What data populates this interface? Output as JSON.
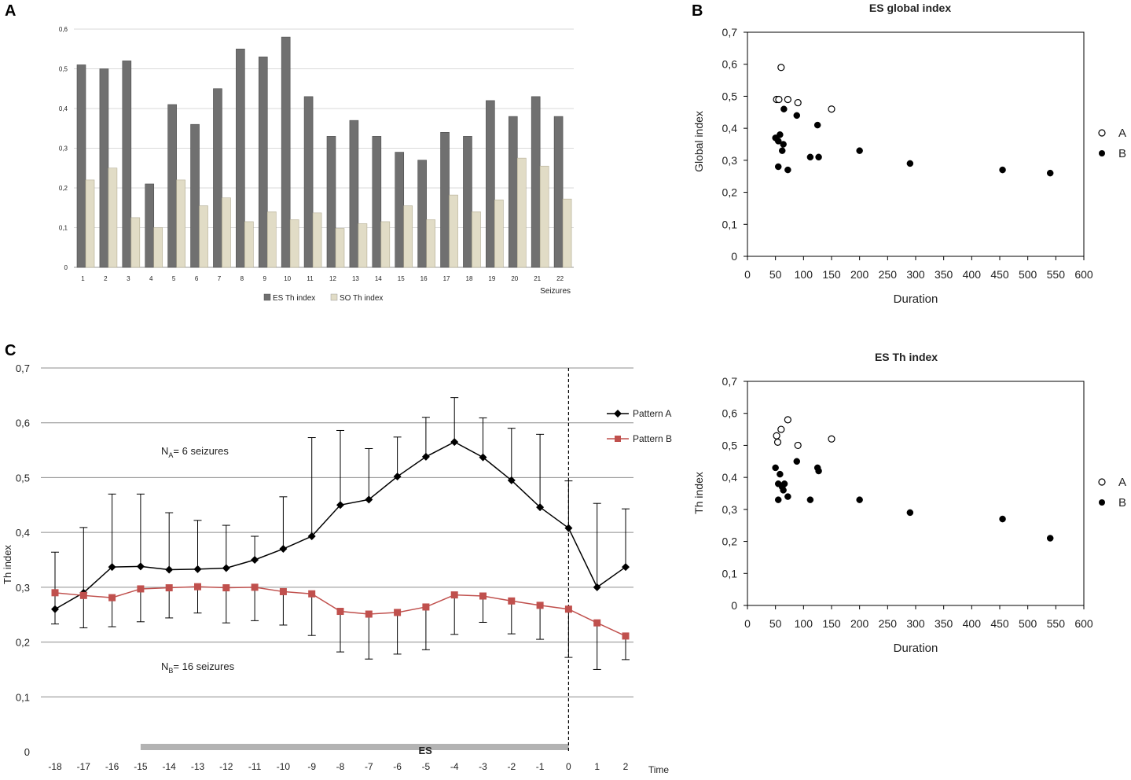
{
  "panel_labels": {
    "a": "A",
    "b": "B",
    "c": "C"
  },
  "chart_data": [
    {
      "id": "A",
      "type": "bar",
      "title": "",
      "xlabel": "Seizures",
      "ylabel": "",
      "ylim": [
        0,
        0.6
      ],
      "yticks": [
        "0",
        "0,1",
        "0,2",
        "0,3",
        "0,4",
        "0,5",
        "0,6"
      ],
      "categories": [
        "1",
        "2",
        "3",
        "4",
        "5",
        "6",
        "7",
        "8",
        "9",
        "10",
        "11",
        "12",
        "13",
        "14",
        "15",
        "16",
        "17",
        "18",
        "19",
        "20",
        "21",
        "22"
      ],
      "series": [
        {
          "name": "ES Th index",
          "color": "#707070",
          "values": [
            0.51,
            0.5,
            0.52,
            0.21,
            0.41,
            0.36,
            0.45,
            0.55,
            0.53,
            0.58,
            0.43,
            0.33,
            0.37,
            0.33,
            0.29,
            0.27,
            0.34,
            0.33,
            0.42,
            0.38,
            0.43,
            0.38
          ]
        },
        {
          "name": "SO Th index",
          "color": "#e1dcc6",
          "values": [
            0.22,
            0.25,
            0.125,
            0.1,
            0.22,
            0.155,
            0.175,
            0.115,
            0.14,
            0.12,
            0.137,
            0.098,
            0.11,
            0.115,
            0.155,
            0.12,
            0.182,
            0.14,
            0.17,
            0.275,
            0.255,
            0.172
          ]
        }
      ]
    },
    {
      "id": "B1",
      "type": "scatter",
      "title": "ES global index",
      "xlabel": "Duration",
      "ylabel": "Global index",
      "xlim": [
        0,
        600
      ],
      "ylim": [
        0,
        0.7
      ],
      "xticks": [
        "0",
        "50",
        "100",
        "150",
        "200",
        "250",
        "300",
        "350",
        "400",
        "450",
        "500",
        "550",
        "600"
      ],
      "yticks": [
        "0",
        "0,1",
        "0,2",
        "0,3",
        "0,4",
        "0,5",
        "0,6",
        "0,7"
      ],
      "series": [
        {
          "name": "A",
          "marker": "open",
          "points": [
            [
              52,
              0.49
            ],
            [
              56,
              0.49
            ],
            [
              60,
              0.59
            ],
            [
              72,
              0.49
            ],
            [
              90,
              0.48
            ],
            [
              150,
              0.46
            ]
          ]
        },
        {
          "name": "B",
          "marker": "filled",
          "points": [
            [
              50,
              0.37
            ],
            [
              55,
              0.36
            ],
            [
              58,
              0.38
            ],
            [
              62,
              0.33
            ],
            [
              64,
              0.35
            ],
            [
              65,
              0.46
            ],
            [
              55,
              0.28
            ],
            [
              72,
              0.27
            ],
            [
              88,
              0.44
            ],
            [
              112,
              0.31
            ],
            [
              125,
              0.41
            ],
            [
              127,
              0.31
            ],
            [
              200,
              0.33
            ],
            [
              290,
              0.29
            ],
            [
              455,
              0.27
            ],
            [
              540,
              0.26
            ]
          ]
        }
      ]
    },
    {
      "id": "B2",
      "type": "scatter",
      "title": "ES Th index",
      "xlabel": "Duration",
      "ylabel": "Th index",
      "xlim": [
        0,
        600
      ],
      "ylim": [
        0,
        0.7
      ],
      "xticks": [
        "0",
        "50",
        "100",
        "150",
        "200",
        "250",
        "300",
        "350",
        "400",
        "450",
        "500",
        "550",
        "600"
      ],
      "yticks": [
        "0",
        "0,1",
        "0,2",
        "0,3",
        "0,4",
        "0,5",
        "0,6",
        "0,7"
      ],
      "series": [
        {
          "name": "A",
          "marker": "open",
          "points": [
            [
              52,
              0.53
            ],
            [
              54,
              0.51
            ],
            [
              60,
              0.55
            ],
            [
              72,
              0.58
            ],
            [
              90,
              0.5
            ],
            [
              150,
              0.52
            ]
          ]
        },
        {
          "name": "B",
          "marker": "filled",
          "points": [
            [
              50,
              0.43
            ],
            [
              55,
              0.38
            ],
            [
              58,
              0.41
            ],
            [
              62,
              0.37
            ],
            [
              64,
              0.36
            ],
            [
              66,
              0.38
            ],
            [
              55,
              0.33
            ],
            [
              72,
              0.34
            ],
            [
              88,
              0.45
            ],
            [
              112,
              0.33
            ],
            [
              125,
              0.43
            ],
            [
              127,
              0.42
            ],
            [
              200,
              0.33
            ],
            [
              290,
              0.29
            ],
            [
              455,
              0.27
            ],
            [
              540,
              0.21
            ]
          ]
        }
      ]
    },
    {
      "id": "C",
      "type": "line",
      "title": "",
      "xlabel": "Time",
      "ylabel": "Th index",
      "ylim": [
        0,
        0.7
      ],
      "yticks": [
        "0",
        "0,1",
        "0,2",
        "0,3",
        "0,4",
        "0,5",
        "0,6",
        "0,7"
      ],
      "categories": [
        "-18",
        "-17",
        "-16",
        "-15",
        "-14",
        "-13",
        "-12",
        "-11",
        "-10",
        "-9",
        "-8",
        "-7",
        "-6",
        "-5",
        "-4",
        "-3",
        "-2",
        "-1",
        "0",
        "1",
        "2"
      ],
      "series": [
        {
          "name": "Pattern A",
          "color": "#000000",
          "marker": "diamond",
          "values": [
            0.26,
            0.29,
            0.337,
            0.338,
            0.332,
            0.333,
            0.335,
            0.35,
            0.37,
            0.393,
            0.45,
            0.46,
            0.502,
            0.538,
            0.565,
            0.537,
            0.495,
            0.446,
            0.408,
            0.3,
            0.337
          ],
          "upper": [
            0.364,
            0.409,
            0.47,
            0.47,
            0.436,
            0.422,
            0.413,
            0.393,
            0.465,
            0.573,
            0.586,
            0.553,
            0.574,
            0.61,
            0.646,
            0.609,
            0.59,
            0.579,
            0.494,
            0.453,
            0.443
          ],
          "lower": [
            null,
            null,
            null,
            null,
            null,
            null,
            null,
            null,
            null,
            null,
            null,
            null,
            null,
            null,
            null,
            null,
            null,
            null,
            null,
            null,
            null
          ]
        },
        {
          "name": "Pattern B",
          "color": "#c0504d",
          "marker": "square",
          "values": [
            0.29,
            0.285,
            0.281,
            0.297,
            0.299,
            0.301,
            0.299,
            0.3,
            0.292,
            0.288,
            0.256,
            0.251,
            0.254,
            0.264,
            0.286,
            0.284,
            0.275,
            0.267,
            0.26,
            0.235,
            0.211
          ],
          "upper": [
            null,
            null,
            null,
            null,
            null,
            null,
            null,
            null,
            null,
            null,
            null,
            null,
            null,
            null,
            null,
            null,
            null,
            null,
            null,
            null,
            null
          ],
          "lower": [
            0.233,
            0.226,
            0.228,
            0.237,
            0.244,
            0.253,
            0.235,
            0.239,
            0.231,
            0.212,
            0.182,
            0.169,
            0.178,
            0.186,
            0.214,
            0.236,
            0.215,
            0.205,
            0.172,
            0.15,
            0.168
          ]
        }
      ],
      "annotations": {
        "na_main": "N",
        "na_sub": "A",
        "na_rest": "= 6 seizures",
        "nb_main": "N",
        "nb_sub": "B",
        "nb_rest": "= 16 seizures",
        "es_label": "ES",
        "es_start": "-15",
        "es_end": "0",
        "event_line_at": "0"
      }
    }
  ]
}
